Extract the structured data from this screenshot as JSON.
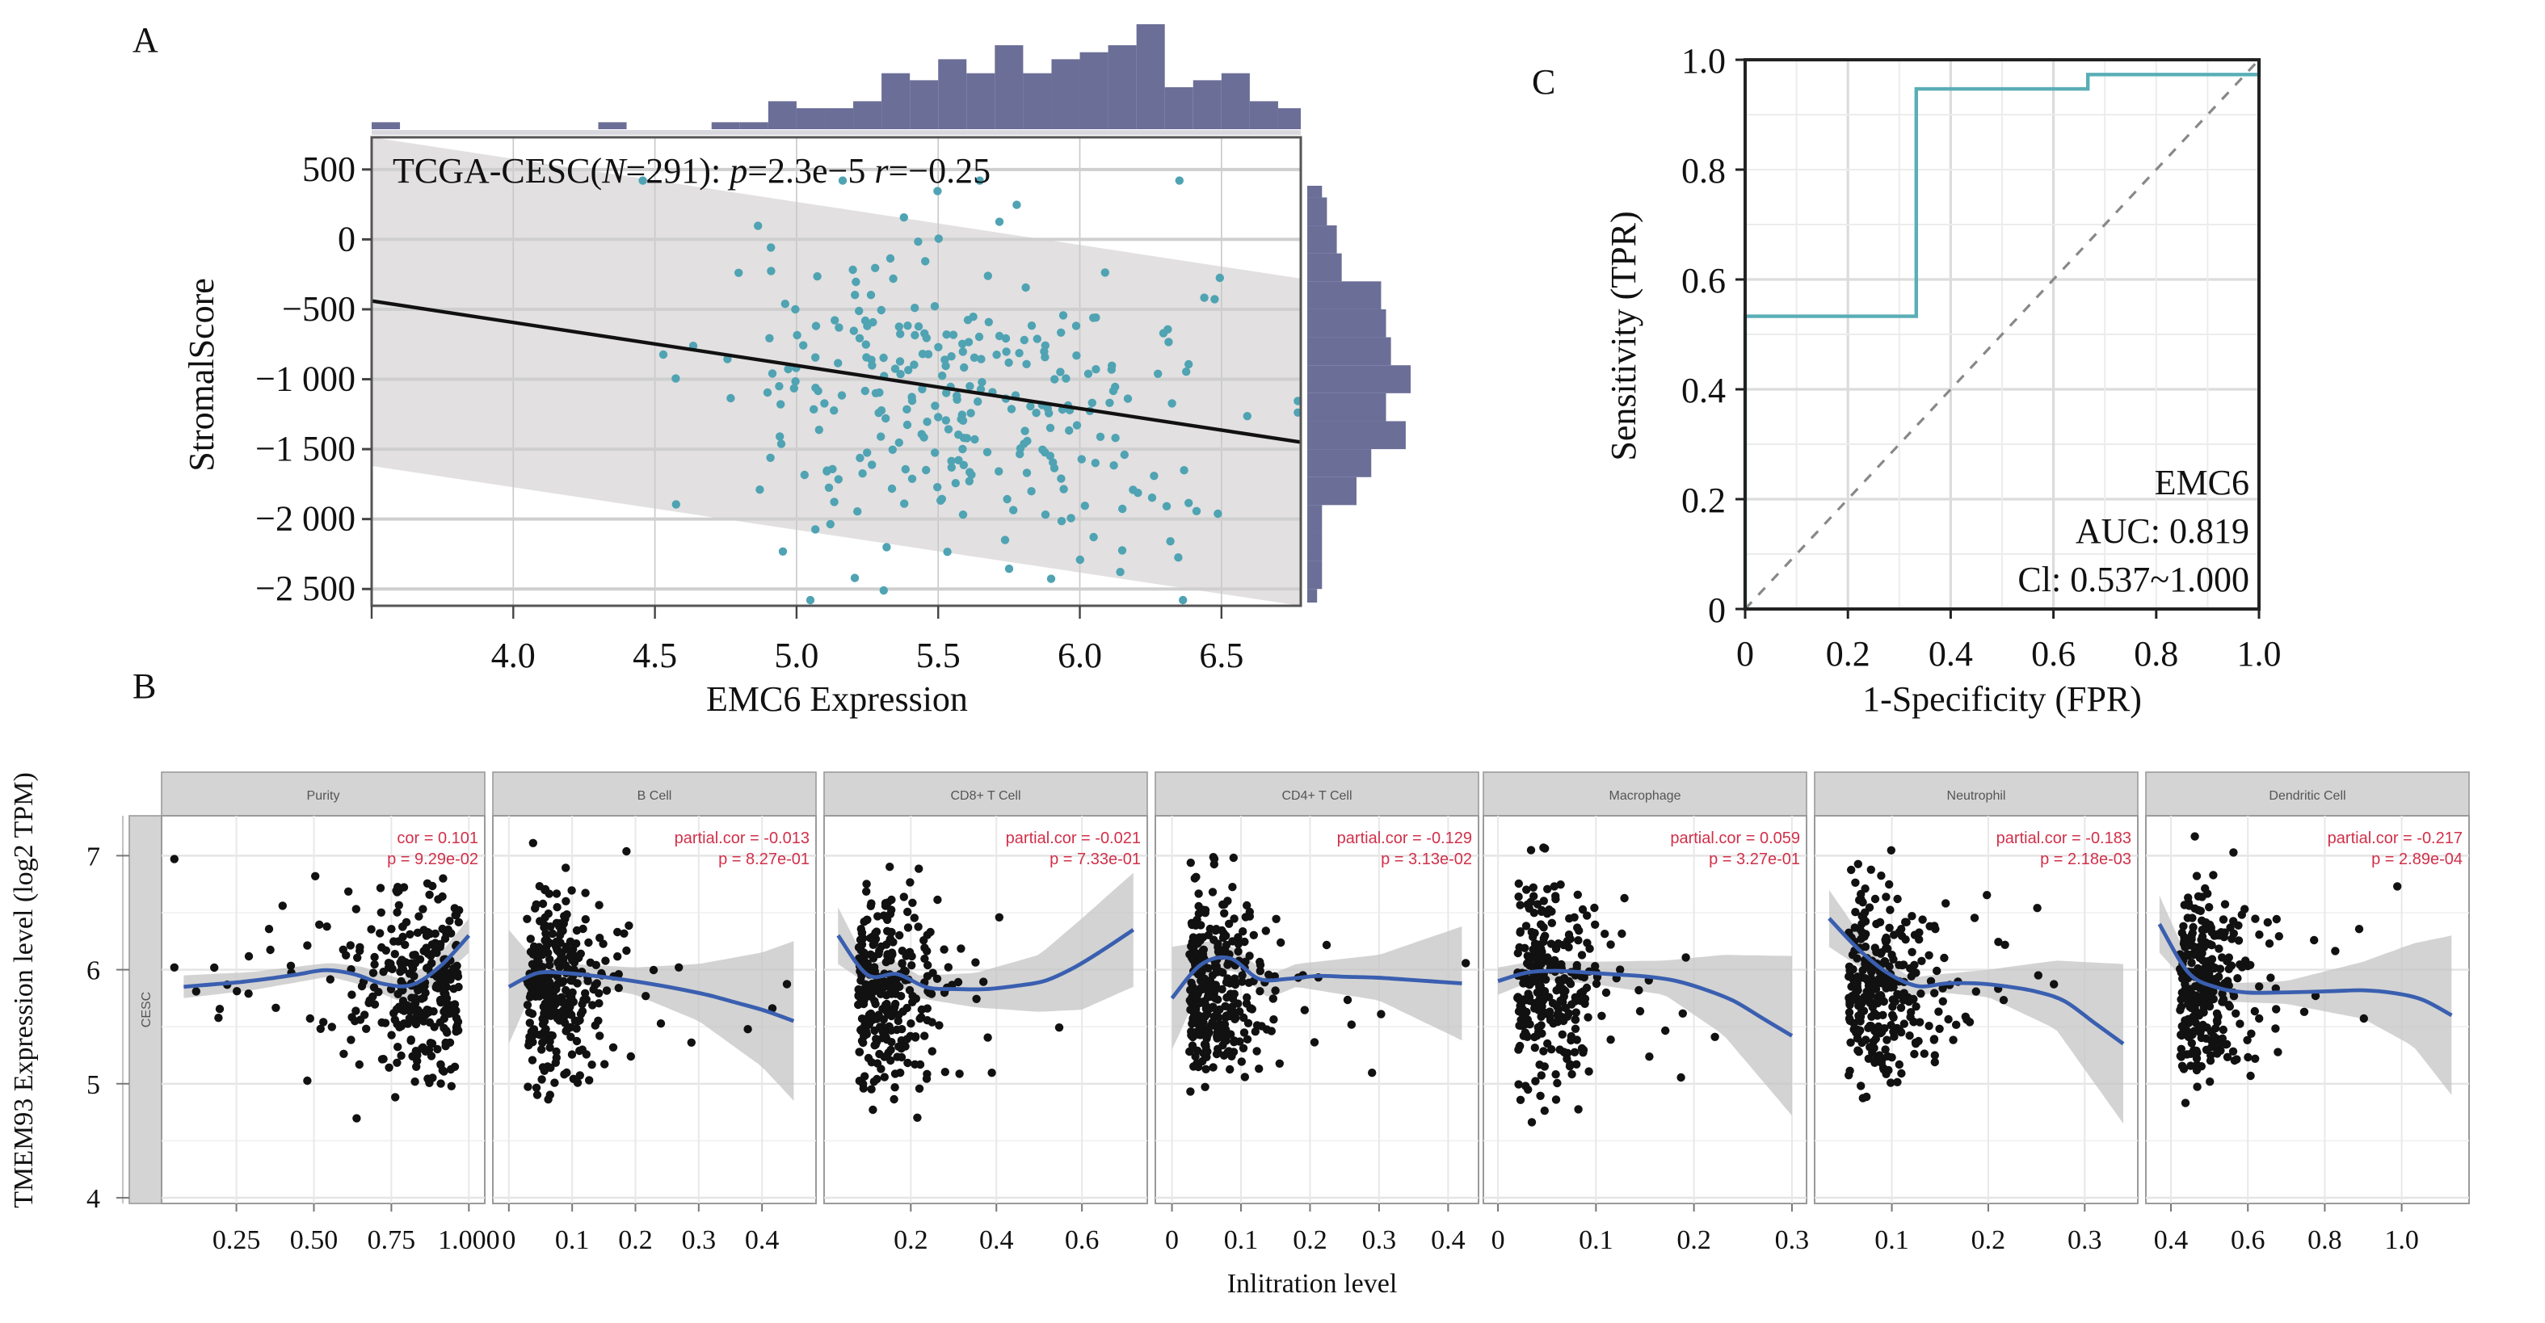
{
  "figure": {
    "panels": [
      "A",
      "B",
      "C"
    ]
  },
  "chart_data": [
    {
      "id": "A",
      "type": "scatter",
      "panel_label": "A",
      "annotation": {
        "prefix": "TCGA-CESC(",
        "n_label": "N",
        "n_value": "=291): ",
        "p_label": "p",
        "p_value": "=2.3e−5 ",
        "r_label": "r",
        "r_value": "=−0.25"
      },
      "n": 291,
      "p": "2.3e-5",
      "r": -0.25,
      "xlabel": "EMC6 Expression",
      "ylabel": "StromalScore",
      "xlim": [
        3.5,
        6.78
      ],
      "ylim": [
        -2620,
        730
      ],
      "x_ticks": [
        4.0,
        4.5,
        5.0,
        5.5,
        6.0,
        6.5
      ],
      "x_tick_labels": [
        "4.0",
        "4.5",
        "5.0",
        "5.5",
        "6.0",
        "6.5"
      ],
      "y_ticks": [
        500,
        0,
        -500,
        -1000,
        -1500,
        -2000,
        -2500
      ],
      "y_tick_labels": [
        "500",
        "0",
        "−500",
        "−1 000",
        "−1 500",
        "−2 000",
        "−2 500"
      ],
      "regression_line": {
        "x": [
          3.5,
          6.78
        ],
        "y": [
          -440,
          -1450
        ]
      },
      "confidence_band": {
        "upper": {
          "x": [
            3.5,
            6.78
          ],
          "y": [
            780,
            -280
          ]
        },
        "lower": {
          "x": [
            3.5,
            6.78
          ],
          "y": [
            -1620,
            -2620
          ]
        }
      },
      "point_color": "#4fa3b3",
      "line_color": "#111111",
      "band_color": "#e2e0e0",
      "top_histogram": {
        "bin_start": 3.5,
        "bin_width": 0.1,
        "counts": [
          1,
          0,
          0,
          0,
          0,
          0,
          0,
          0,
          1,
          0,
          0,
          0,
          1,
          1,
          4,
          3,
          3,
          4,
          8,
          7,
          10,
          8,
          12,
          8,
          10,
          11,
          12,
          15,
          6,
          7,
          8,
          4,
          3,
          3,
          0,
          2
        ]
      },
      "right_histogram": {
        "bin_start": 700,
        "bin_width": -200,
        "counts": [
          1,
          3,
          4,
          6,
          7,
          15,
          16,
          17,
          21,
          16,
          20,
          13,
          10,
          3,
          3,
          3,
          2
        ]
      },
      "histogram_color": "#6b6e97"
    },
    {
      "id": "C",
      "type": "line",
      "panel_label": "C",
      "xlabel": "1-Specificity (FPR)",
      "ylabel": "Sensitivity (TPR)",
      "xlim": [
        0,
        1
      ],
      "ylim": [
        0,
        1
      ],
      "x_ticks": [
        0,
        0.2,
        0.4,
        0.6,
        0.8,
        1.0
      ],
      "x_tick_labels": [
        "0",
        "0.2",
        "0.4",
        "0.6",
        "0.8",
        "1.0"
      ],
      "y_ticks": [
        0,
        0.2,
        0.4,
        0.6,
        0.8,
        1.0
      ],
      "y_tick_labels": [
        "0",
        "0.2",
        "0.4",
        "0.6",
        "0.8",
        "1.0"
      ],
      "series": [
        {
          "name": "EMC6",
          "x": [
            0,
            0,
            0.333,
            0.333,
            0.667,
            0.667,
            1.0,
            1.0
          ],
          "y": [
            0,
            0.533,
            0.533,
            0.947,
            0.947,
            0.973,
            0.973,
            1.0
          ],
          "color": "#5aaeb6"
        },
        {
          "name": "reference",
          "x": [
            0,
            1
          ],
          "y": [
            0,
            1
          ],
          "color": "#888888",
          "dashed": true
        }
      ],
      "annotations": [
        "EMC6",
        "AUC: 0.819",
        "Cl: 0.537~1.000"
      ],
      "auc": 0.819,
      "ci": [
        0.537,
        1.0
      ],
      "grid": true
    },
    {
      "id": "B",
      "type": "scatter",
      "panel_label": "B",
      "ylabel": "TMEM93 Expression level (log2 TPM)",
      "xlabel": "Inlitration level",
      "row_strip": "CESC",
      "ylim": [
        3.95,
        7.35
      ],
      "y_ticks": [
        4,
        5,
        6,
        7
      ],
      "y_tick_labels": [
        "4",
        "5",
        "6",
        "7"
      ],
      "point_color": "#111111",
      "smooth_color": "#3a5fb0",
      "annot_color": "#d0304a",
      "facets": [
        {
          "name": "Purity",
          "annot1": "cor = 0.101",
          "annot2": "p = 9.29e-02",
          "xlim": [
            0.04,
            1.02
          ],
          "x_ticks": [
            0.25,
            0.5,
            0.75,
            1.0
          ],
          "x_tick_labels": [
            "0.25",
            "0.50",
            "0.75",
            "1.000"
          ],
          "smooth": {
            "x": [
              0.08,
              0.3,
              0.55,
              0.65,
              0.78,
              0.88,
              1.0
            ],
            "y": [
              5.85,
              5.9,
              6.0,
              5.95,
              5.82,
              5.95,
              6.3
            ]
          },
          "band_halfwidth": [
            0.1,
            0.08,
            0.06,
            0.08,
            0.1,
            0.1,
            0.15
          ]
        },
        {
          "name": "B Cell",
          "annot1": "partial.cor = -0.013",
          "annot2": "p = 8.27e-01",
          "xlim": [
            -0.01,
            0.47
          ],
          "x_ticks": [
            0,
            0.1,
            0.2,
            0.3,
            0.4
          ],
          "x_tick_labels": [
            "0",
            "0.1",
            "0.2",
            "0.3",
            "0.4"
          ],
          "smooth": {
            "x": [
              0.0,
              0.04,
              0.1,
              0.2,
              0.3,
              0.4,
              0.45
            ],
            "y": [
              5.85,
              5.97,
              5.97,
              5.9,
              5.8,
              5.65,
              5.55
            ]
          },
          "band_halfwidth": [
            0.5,
            0.12,
            0.08,
            0.12,
            0.25,
            0.5,
            0.7
          ]
        },
        {
          "name": "CD8+ T Cell",
          "annot1": "partial.cor = -0.021",
          "annot2": "p = 7.33e-01",
          "xlim": [
            0.02,
            0.73
          ],
          "x_ticks": [
            0.2,
            0.4,
            0.6
          ],
          "x_tick_labels": [
            "0.2",
            "0.4",
            "0.6"
          ],
          "smooth": {
            "x": [
              0.03,
              0.1,
              0.15,
              0.22,
              0.35,
              0.5,
              0.6,
              0.72
            ],
            "y": [
              6.3,
              5.95,
              6.0,
              5.85,
              5.82,
              5.88,
              6.05,
              6.35
            ]
          },
          "band_halfwidth": [
            0.25,
            0.08,
            0.1,
            0.1,
            0.15,
            0.25,
            0.4,
            0.5
          ]
        },
        {
          "name": "CD4+ T Cell",
          "annot1": "partial.cor = -0.129",
          "annot2": "p = 3.13e-02",
          "xlim": [
            -0.01,
            0.43
          ],
          "x_ticks": [
            0,
            0.1,
            0.2,
            0.3,
            0.4
          ],
          "x_tick_labels": [
            "0",
            "0.1",
            "0.2",
            "0.3",
            "0.4"
          ],
          "smooth": {
            "x": [
              0.0,
              0.05,
              0.09,
              0.14,
              0.18,
              0.3,
              0.42
            ],
            "y": [
              5.75,
              6.1,
              6.1,
              5.85,
              5.95,
              5.93,
              5.88
            ]
          },
          "band_halfwidth": [
            0.45,
            0.15,
            0.1,
            0.1,
            0.1,
            0.2,
            0.5
          ]
        },
        {
          "name": "Macrophage",
          "annot1": "partial.cor = 0.059",
          "annot2": "p = 3.27e-01",
          "xlim": [
            -0.005,
            0.305
          ],
          "x_ticks": [
            0,
            0.1,
            0.2,
            0.3
          ],
          "x_tick_labels": [
            "0",
            "0.1",
            "0.2",
            "0.3"
          ],
          "smooth": {
            "x": [
              0.0,
              0.04,
              0.1,
              0.17,
              0.23,
              0.3
            ],
            "y": [
              5.9,
              6.0,
              5.97,
              5.93,
              5.78,
              5.42
            ]
          },
          "band_halfwidth": [
            0.12,
            0.08,
            0.1,
            0.15,
            0.35,
            0.7
          ]
        },
        {
          "name": "Neutrophil",
          "annot1": "partial.cor = -0.183",
          "annot2": "p = 2.18e-03",
          "xlim": [
            0.03,
            0.345
          ],
          "x_ticks": [
            0.1,
            0.2,
            0.3
          ],
          "x_tick_labels": [
            "0.1",
            "0.2",
            "0.3"
          ],
          "smooth": {
            "x": [
              0.035,
              0.08,
              0.12,
              0.15,
              0.2,
              0.27,
              0.34
            ],
            "y": [
              6.45,
              6.05,
              5.85,
              5.88,
              5.88,
              5.78,
              5.35
            ]
          },
          "band_halfwidth": [
            0.25,
            0.1,
            0.08,
            0.08,
            0.12,
            0.3,
            0.7
          ]
        },
        {
          "name": "Dendritic Cell",
          "annot1": "partial.cor = -0.217",
          "annot2": "p = 2.89e-04",
          "xlim": [
            0.36,
            1.15
          ],
          "x_ticks": [
            0.4,
            0.6,
            0.8,
            1.0
          ],
          "x_tick_labels": [
            "0.4",
            "0.6",
            "0.8",
            "1.0"
          ],
          "smooth": {
            "x": [
              0.37,
              0.45,
              0.55,
              0.7,
              0.9,
              1.03,
              1.13
            ],
            "y": [
              6.4,
              5.95,
              5.8,
              5.8,
              5.82,
              5.78,
              5.6
            ]
          },
          "band_halfwidth": [
            0.25,
            0.1,
            0.08,
            0.1,
            0.25,
            0.45,
            0.7
          ]
        }
      ]
    }
  ]
}
